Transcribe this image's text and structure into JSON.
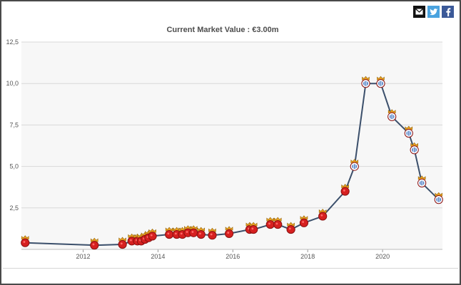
{
  "share": {
    "icons": [
      "mail-icon",
      "twitter-icon",
      "facebook-icon"
    ]
  },
  "chart_data": {
    "type": "line",
    "title": "Current Market Value : €3.00m",
    "xlabel": "",
    "ylabel": "",
    "x_ticks": [
      "2012",
      "2014",
      "2016",
      "2018",
      "2020"
    ],
    "y_ticks": [
      "12,5",
      "10,0",
      "7,5",
      "5,0",
      "2,5"
    ],
    "xlim": [
      2010.35,
      2021.6
    ],
    "ylim": [
      0,
      12.5
    ],
    "grid": true,
    "legend": "none",
    "colors": {
      "line": "#3b4f6b",
      "plot_bg": "#f7f7f7",
      "grid": "#d9d9d9",
      "marker_red": "#d62020",
      "marker_gold": "#e8a020",
      "marker_blue": "#4d7fc6"
    },
    "series": [
      {
        "points": [
          {
            "x": 2010.45,
            "y": 0.4,
            "m": "red"
          },
          {
            "x": 2012.3,
            "y": 0.25,
            "m": "red"
          },
          {
            "x": 2013.05,
            "y": 0.3,
            "m": "red"
          },
          {
            "x": 2013.3,
            "y": 0.5,
            "m": "red"
          },
          {
            "x": 2013.45,
            "y": 0.5,
            "m": "red"
          },
          {
            "x": 2013.55,
            "y": 0.5,
            "m": "red"
          },
          {
            "x": 2013.65,
            "y": 0.6,
            "m": "red"
          },
          {
            "x": 2013.75,
            "y": 0.7,
            "m": "red"
          },
          {
            "x": 2013.85,
            "y": 0.8,
            "m": "red"
          },
          {
            "x": 2014.3,
            "y": 0.9,
            "m": "red"
          },
          {
            "x": 2014.5,
            "y": 0.9,
            "m": "red"
          },
          {
            "x": 2014.65,
            "y": 0.9,
            "m": "red"
          },
          {
            "x": 2014.8,
            "y": 1.0,
            "m": "red"
          },
          {
            "x": 2014.95,
            "y": 1.0,
            "m": "red"
          },
          {
            "x": 2015.15,
            "y": 0.9,
            "m": "red"
          },
          {
            "x": 2015.45,
            "y": 0.85,
            "m": "red"
          },
          {
            "x": 2015.9,
            "y": 0.95,
            "m": "red"
          },
          {
            "x": 2016.45,
            "y": 1.2,
            "m": "red"
          },
          {
            "x": 2016.55,
            "y": 1.2,
            "m": "red"
          },
          {
            "x": 2017.0,
            "y": 1.5,
            "m": "red"
          },
          {
            "x": 2017.2,
            "y": 1.5,
            "m": "red"
          },
          {
            "x": 2017.55,
            "y": 1.2,
            "m": "red"
          },
          {
            "x": 2017.9,
            "y": 1.6,
            "m": "red"
          },
          {
            "x": 2018.4,
            "y": 2.0,
            "m": "red"
          },
          {
            "x": 2019.0,
            "y": 3.5,
            "m": "red"
          },
          {
            "x": 2019.25,
            "y": 5.0,
            "m": "blue"
          },
          {
            "x": 2019.55,
            "y": 10.0,
            "m": "blue"
          },
          {
            "x": 2019.95,
            "y": 10.0,
            "m": "blue"
          },
          {
            "x": 2020.25,
            "y": 8.0,
            "m": "blue"
          },
          {
            "x": 2020.7,
            "y": 7.0,
            "m": "blue"
          },
          {
            "x": 2020.85,
            "y": 6.0,
            "m": "blue"
          },
          {
            "x": 2021.05,
            "y": 4.0,
            "m": "blue"
          },
          {
            "x": 2021.5,
            "y": 3.0,
            "m": "blue"
          }
        ]
      }
    ]
  }
}
